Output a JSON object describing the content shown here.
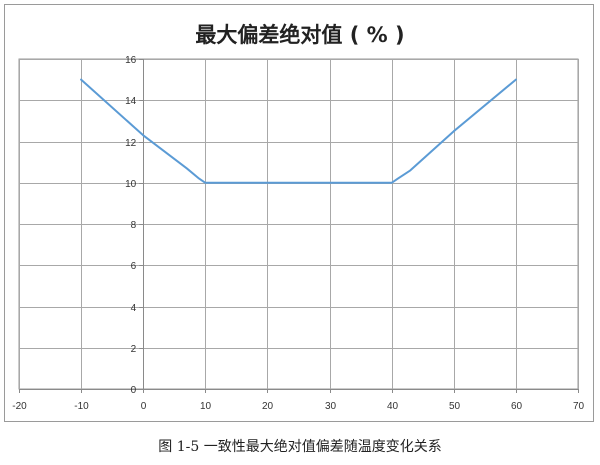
{
  "chart_data": {
    "type": "line",
    "title": "最大偏差绝对值 ( % )",
    "xlabel": "",
    "ylabel": "",
    "xlim": [
      -20,
      70
    ],
    "ylim": [
      0,
      16
    ],
    "x_ticks": [
      -20,
      -10,
      0,
      10,
      20,
      30,
      40,
      50,
      60,
      70
    ],
    "y_ticks": [
      0,
      2,
      4,
      6,
      8,
      10,
      12,
      14,
      16
    ],
    "grid": true,
    "legend": "none",
    "series": [
      {
        "color": "#5b9bd5",
        "x": [
          -10,
          0,
          7,
          9,
          10,
          11,
          20,
          30,
          39,
          40,
          41,
          43,
          50,
          60
        ],
        "y": [
          15,
          12.3,
          10.7,
          10.2,
          10.0,
          10.0,
          10.0,
          10.0,
          10.0,
          10.0,
          10.2,
          10.6,
          12.5,
          15
        ]
      }
    ]
  },
  "caption": "图 1-5 一致性最大绝对值偏差随温度变化关系"
}
